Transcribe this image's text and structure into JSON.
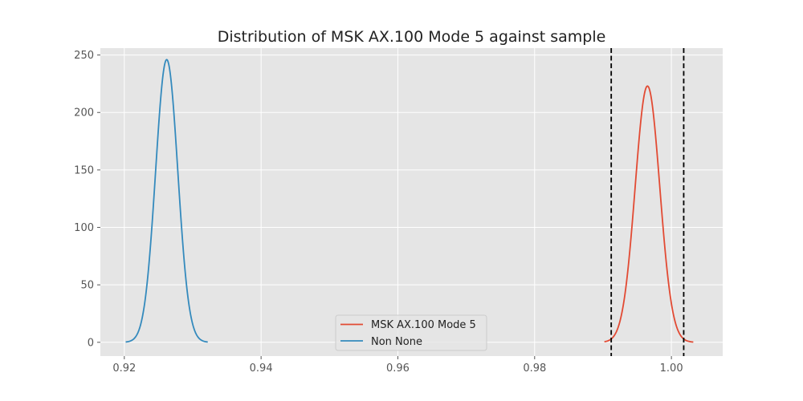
{
  "chart_data": {
    "type": "line",
    "title": "Distribution of MSK AX.100 Mode 5 against sample",
    "xlabel": "",
    "ylabel": "",
    "xlim": [
      0.9165,
      1.0075
    ],
    "ylim": [
      -12,
      256
    ],
    "xticks": [
      0.92,
      0.94,
      0.96,
      0.98,
      1.0
    ],
    "xtick_labels": [
      "0.92",
      "0.94",
      "0.96",
      "0.98",
      "1.00"
    ],
    "yticks": [
      0,
      50,
      100,
      150,
      200,
      250
    ],
    "ytick_labels": [
      "0",
      "50",
      "100",
      "150",
      "200",
      "250"
    ],
    "grid": true,
    "legend_position": "lower-center",
    "series": [
      {
        "name": "MSK AX.100 Mode 5",
        "color": "#E24A33",
        "distribution": "normal",
        "mean": 0.9965,
        "std": 0.0018,
        "peak": 223,
        "x_range": [
          0.9902,
          1.0032
        ]
      },
      {
        "name": "Non None",
        "color": "#348ABD",
        "distribution": "normal",
        "mean": 0.9262,
        "std": 0.00162,
        "peak": 246,
        "x_range": [
          0.9202,
          0.9322
        ]
      }
    ],
    "vlines": [
      {
        "x": 0.9912,
        "style": "dashed",
        "color": "#000000"
      },
      {
        "x": 1.0018,
        "style": "dashed",
        "color": "#000000"
      }
    ]
  }
}
